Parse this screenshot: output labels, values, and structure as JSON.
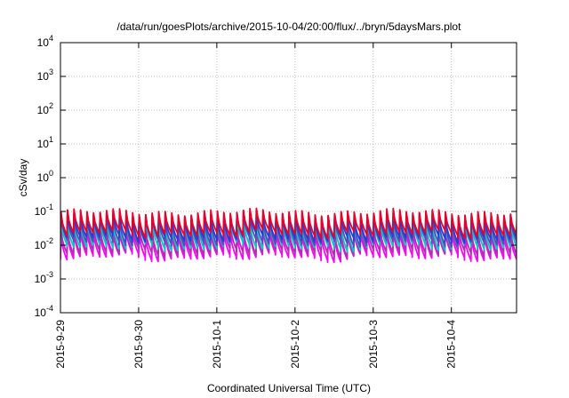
{
  "chart_data": {
    "type": "line",
    "title": "/data/run/goesPlots/archive/2015-10-04/20:00/flux/../bryn/5daysMars.plot",
    "xlabel": "Coordinated Universal Time (UTC)",
    "ylabel": "cSv/day",
    "y_scale": "log",
    "ylim": [
      0.0001,
      10000
    ],
    "xlim": [
      "2015-09-29T00:00",
      "2015-10-04T20:00"
    ],
    "grid": true,
    "x_tick_labels": [
      "2015-9-29",
      "2015-9-30",
      "2015-10-1",
      "2015-10-2",
      "2015-10-3",
      "2015-10-4"
    ],
    "y_tick_labels": [
      {
        "base": "10",
        "exp": "-4"
      },
      {
        "base": "10",
        "exp": "-3"
      },
      {
        "base": "10",
        "exp": "-2"
      },
      {
        "base": "10",
        "exp": "-1"
      },
      {
        "base": "10",
        "exp": "0"
      },
      {
        "base": "10",
        "exp": "1"
      },
      {
        "base": "10",
        "exp": "2"
      },
      {
        "base": "10",
        "exp": "3"
      },
      {
        "base": "10",
        "exp": "4"
      }
    ],
    "period_hours": 2,
    "series": [
      {
        "color": "#e8002a",
        "peak": 0.095,
        "trough": 0.022
      },
      {
        "color": "#1f3fd8",
        "peak": 0.08,
        "trough": 0.016
      },
      {
        "color": "#5a4ab8",
        "peak": 0.07,
        "trough": 0.012
      },
      {
        "color": "#00c8c8",
        "peak": 0.055,
        "trough": 0.009
      },
      {
        "color": "#b030b0",
        "peak": 0.035,
        "trough": 0.006
      },
      {
        "color": "#ff00ff",
        "peak": 0.025,
        "trough": 0.0045
      }
    ]
  }
}
